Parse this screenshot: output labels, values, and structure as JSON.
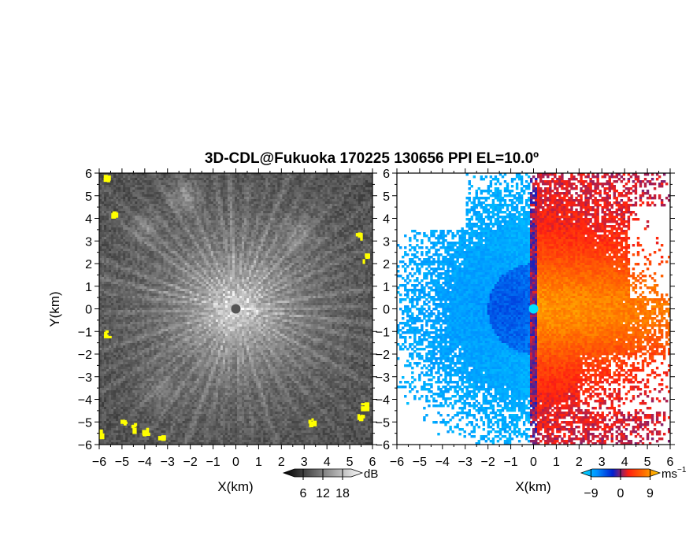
{
  "title": "3D-CDL@Fukuoka 170225 130656 PPI EL=10.0º",
  "chart_data": [
    {
      "type": "heatmap",
      "panel": "reflectivity",
      "xlabel": "X(km)",
      "ylabel": "Y(km)",
      "xlim": [
        -6,
        6
      ],
      "ylim": [
        -6,
        6
      ],
      "xticks": [
        "−6",
        "−5",
        "−4",
        "−3",
        "−2",
        "−1",
        "0",
        "1",
        "2",
        "3",
        "4",
        "5",
        "6"
      ],
      "yticks": [
        "6",
        "5",
        "4",
        "3",
        "2",
        "1",
        "0",
        "−1",
        "−2",
        "−3",
        "−4",
        "−5",
        "−6"
      ],
      "colorbar": {
        "unit": "dB",
        "range": [
          0,
          24
        ],
        "tick_values": [
          6,
          12,
          18
        ],
        "tick_labels": [
          "6",
          "12",
          "18"
        ],
        "colors": [
          "#000000",
          "#ffffff"
        ],
        "overflow_color": "#ffff00"
      },
      "background_level": 0.28,
      "ray_count": 48,
      "yellow_spots": [
        [
          -5.7,
          5.8
        ],
        [
          -5.4,
          4.3
        ],
        [
          5.4,
          3.3
        ],
        [
          5.7,
          2.3
        ],
        [
          -5.7,
          -1.1
        ],
        [
          -4.0,
          -5.4
        ],
        [
          -3.3,
          -5.6
        ],
        [
          -4.5,
          -5.2
        ],
        [
          -5.0,
          -5.0
        ],
        [
          3.3,
          -4.9
        ],
        [
          5.6,
          -4.3
        ],
        [
          5.4,
          -4.8
        ],
        [
          -6.0,
          -5.5
        ]
      ]
    },
    {
      "type": "heatmap",
      "panel": "doppler-velocity",
      "xlabel": "X(km)",
      "xlim": [
        -6,
        6
      ],
      "ylim": [
        -6,
        6
      ],
      "xticks": [
        "−6",
        "−5",
        "−4",
        "−3",
        "−2",
        "−1",
        "0",
        "1",
        "2",
        "3",
        "4",
        "5",
        "6"
      ],
      "yticks": [
        "6",
        "5",
        "4",
        "3",
        "2",
        "1",
        "0",
        "−1",
        "−2",
        "−3",
        "−4",
        "−5",
        "−6"
      ],
      "colorbar": {
        "unit": "ms",
        "unit_exp": "−1",
        "range": [
          -12,
          12
        ],
        "tick_values": [
          -9,
          0,
          9
        ],
        "tick_labels": [
          "−9",
          "0",
          "9"
        ],
        "colors": [
          "#00e0ff",
          "#0090ff",
          "#0020d0",
          "#ff2010",
          "#ff7000",
          "#ffd000"
        ]
      }
    }
  ]
}
